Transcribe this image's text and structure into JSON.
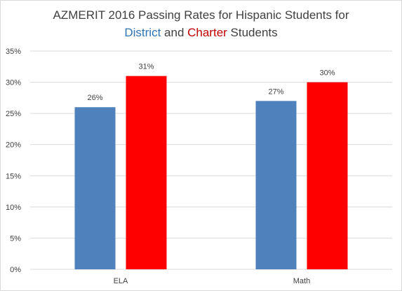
{
  "chart_data": {
    "type": "bar",
    "title_line1": "AZMERIT 2016 Passing Rates for Hispanic Students for",
    "title_line2": {
      "district": "District",
      "and": " and ",
      "charter": "Charter",
      "students": " Students"
    },
    "categories": [
      "ELA",
      "Math"
    ],
    "series": [
      {
        "name": "District",
        "color": "#4f81bd",
        "values": [
          26,
          27
        ],
        "labels": [
          "26%",
          "27%"
        ]
      },
      {
        "name": "Charter",
        "color": "#ff0000",
        "values": [
          31,
          30
        ],
        "labels": [
          "31%",
          "30%"
        ]
      }
    ],
    "ylim": [
      0,
      35
    ],
    "yticks": [
      0,
      5,
      10,
      15,
      20,
      25,
      30,
      35
    ],
    "ytick_labels": [
      "0%",
      "5%",
      "10%",
      "15%",
      "20%",
      "25%",
      "30%",
      "35%"
    ],
    "grid": true,
    "legend": "none",
    "colors": {
      "district": "#2e75b6",
      "charter": "#c00000",
      "gridline": "#d9d9d9",
      "text": "#404040"
    }
  }
}
